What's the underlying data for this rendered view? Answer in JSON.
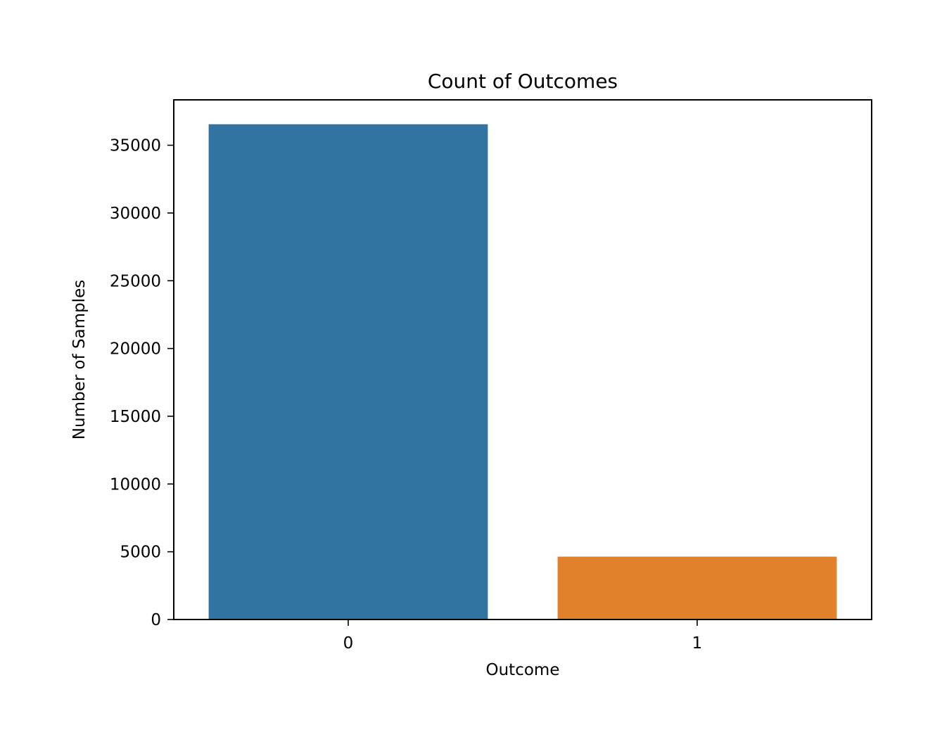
{
  "chart_data": {
    "type": "bar",
    "title": "Count of Outcomes",
    "xlabel": "Outcome",
    "ylabel": "Number of Samples",
    "categories": [
      "0",
      "1"
    ],
    "values": [
      36550,
      4640
    ],
    "ylim": [
      0,
      38350
    ],
    "yticks": [
      0,
      5000,
      10000,
      15000,
      20000,
      25000,
      30000,
      35000
    ],
    "grid": false,
    "bar_colors": [
      "#3274a1",
      "#e1812c"
    ]
  }
}
